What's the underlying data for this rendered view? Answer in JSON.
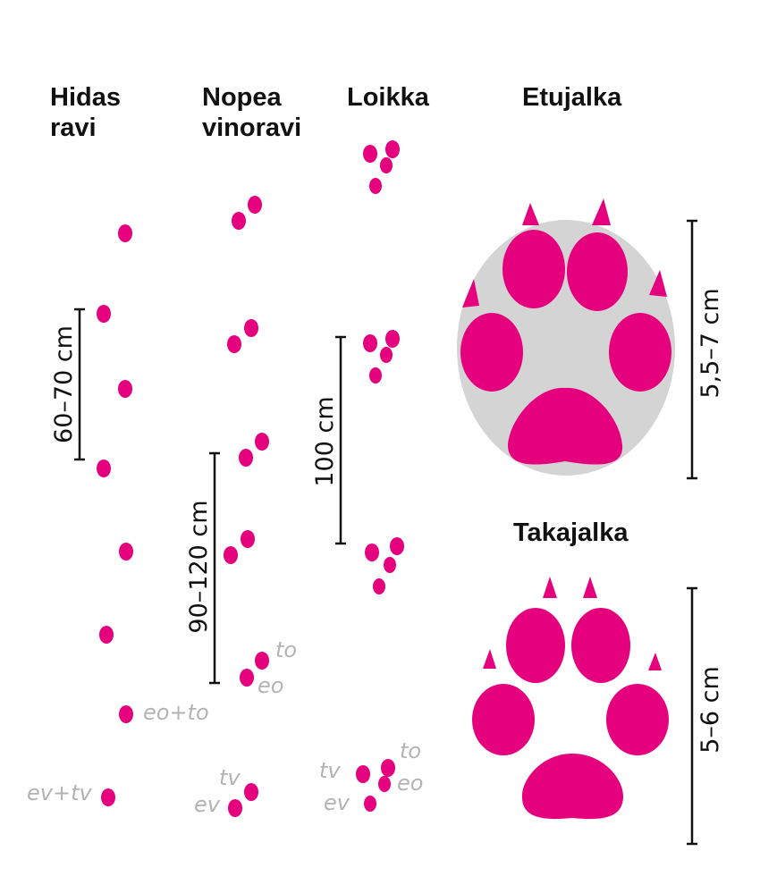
{
  "columns": {
    "slow_trot": [
      "Hidas",
      "ravi"
    ],
    "fast_trot": [
      "Nopea",
      "vinoravi"
    ],
    "gallop": "Loikka",
    "front_foot": "Etujalka",
    "hind_foot": "Takajalka"
  },
  "measures": {
    "slow_trot": "60–70 cm",
    "fast_trot": "90–120 cm",
    "gallop": "100 cm",
    "front_foot": "5,5–7 cm",
    "hind_foot": "5–6 cm"
  },
  "labels": {
    "eo_to": "eo+to",
    "ev_tv": "ev+tv",
    "fast_to": "to",
    "fast_eo": "eo",
    "fast_tv": "tv",
    "fast_ev": "ev",
    "gallop_to": "to",
    "gallop_tv": "tv",
    "gallop_eo": "eo",
    "gallop_ev": "ev"
  },
  "colors": {
    "print": "#e5007e",
    "label": "#b3b3b3",
    "foot_outline": "#d4d4d4",
    "text": "#111111"
  }
}
